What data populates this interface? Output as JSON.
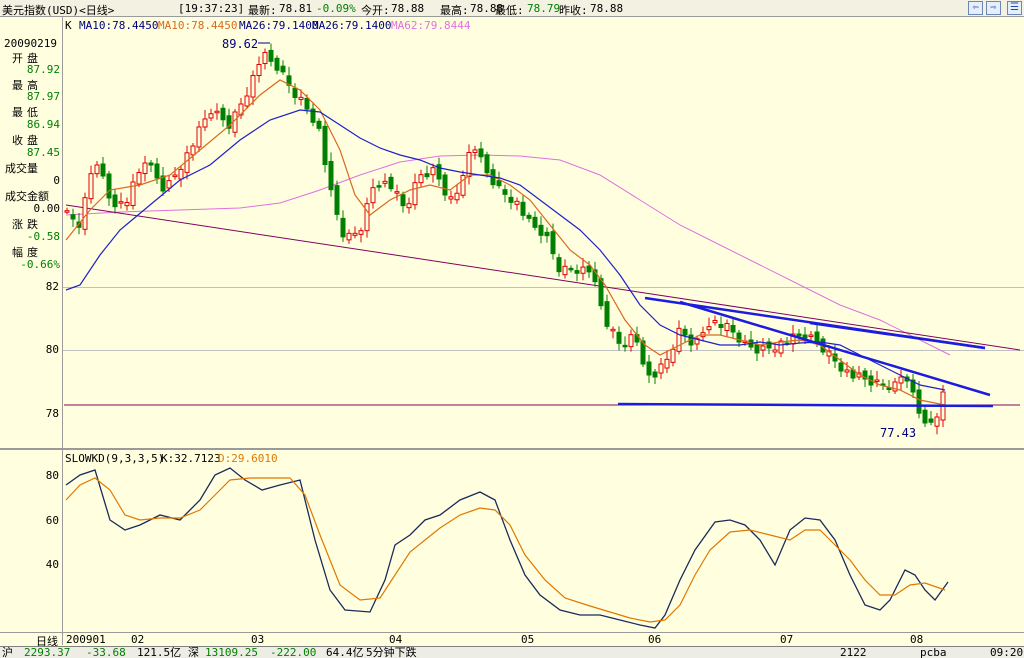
{
  "titlebar": {
    "name": "美元指数(USD)<日线>",
    "time": "[19:37:23]",
    "latest_label": "最新:",
    "latest_value": "78.81",
    "change": "-0.09%",
    "open_label": "今开:",
    "open_value": "78.88",
    "high_label": "最高:",
    "high_value": "78.88",
    "low_label": "最低:",
    "low_value": "78.79",
    "prev_label": "昨收:",
    "prev_value": "78.88",
    "btn_back": "⇦",
    "btn_fwd": "⇨",
    "btn_menu": "☰"
  },
  "info_panel": {
    "date": "20090219",
    "open_label": "开盘",
    "open": "87.92",
    "high_label": "最高",
    "high": "87.97",
    "low_label": "最低",
    "low": "86.94",
    "close_label": "收盘",
    "close": "87.45",
    "volume_label": "成交量",
    "volume": "0",
    "amount_label": "成交金额",
    "amount": "0.00",
    "change_label": "涨跌",
    "change": "-0.58",
    "amplitude_label": "幅度",
    "amplitude": "-0.66%"
  },
  "main_chart": {
    "legend": {
      "k": "K",
      "ma10_a": "MA10:78.4450",
      "ma10_b": "MA10:78.4450",
      "ma26_a": "MA26:79.1400",
      "ma26_b": "MA26:79.1400",
      "ma62": "MA62:79.8444"
    },
    "y_ticks": [
      "82",
      "80",
      "78"
    ],
    "annotation_high": "89.62",
    "annotation_low": "77.43",
    "colors": {
      "up": "#E00000",
      "down": "#008000",
      "ma10": "#D86A1E",
      "ma26": "#2020C8",
      "ma62": "#E070E0",
      "trend": "#1C1CE0",
      "long_trend": "#800060"
    }
  },
  "indicator": {
    "legend": {
      "name": "SLOWKD(9,3,3,5)",
      "k": "K:32.7123",
      "d": "D:29.6010"
    },
    "y_ticks": [
      "80",
      "60",
      "40"
    ],
    "colors": {
      "k": "#1A2A5A",
      "d": "#E07800"
    }
  },
  "x_axis": {
    "period_label": "日线",
    "labels": [
      "200901",
      "02",
      "03",
      "04",
      "05",
      "06",
      "07",
      "08"
    ]
  },
  "chart_data": {
    "type": "candlestick",
    "title": "美元指数(USD)<日线>",
    "series": [
      {
        "name": "MA10",
        "value": 78.445
      },
      {
        "name": "MA26",
        "value": 79.14
      },
      {
        "name": "MA62",
        "value": 79.8444
      }
    ],
    "annotations": [
      {
        "label": "89.62"
      },
      {
        "label": "77.43"
      }
    ],
    "yticks": [
      82,
      80,
      78
    ],
    "xticks": [
      "200901",
      "02",
      "03",
      "04",
      "05",
      "06",
      "07",
      "08"
    ],
    "indicator": {
      "name": "SLOWKD(9,3,3,5)",
      "K": 32.7123,
      "D": 29.601,
      "yticks": [
        80,
        60,
        40
      ]
    }
  },
  "statusbar": {
    "s1": "沪",
    "s2": "2293.37",
    "s3": "-33.68",
    "s4": "121.5亿",
    "s5": "深",
    "s6": "13109.25",
    "s7": "-222.00",
    "s8": "64.4亿",
    "s9": "5分钟下跌",
    "s10": "2122",
    "s11": "pcba",
    "s12": "09:20"
  }
}
